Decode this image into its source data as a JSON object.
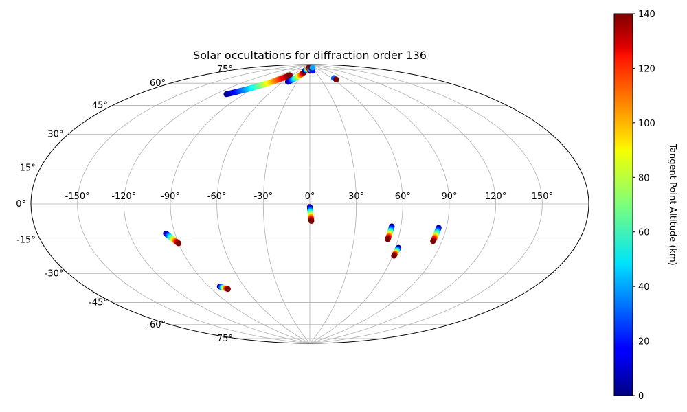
{
  "chart_data": {
    "type": "scatter",
    "projection": "aitoff",
    "title": "Solar occultations for diffraction order 136",
    "x_tick_labels": [
      "-150°",
      "-120°",
      "-90°",
      "-60°",
      "-30°",
      "0°",
      "30°",
      "60°",
      "90°",
      "120°",
      "150°"
    ],
    "x_tick_values": [
      -150,
      -120,
      -90,
      -60,
      -30,
      0,
      30,
      60,
      90,
      120,
      150
    ],
    "y_tick_labels": [
      "-75°",
      "-60°",
      "-45°",
      "-30°",
      "-15°",
      "0°",
      "15°",
      "30°",
      "45°",
      "60°",
      "75°"
    ],
    "y_tick_values": [
      -75,
      -60,
      -45,
      -30,
      -15,
      0,
      15,
      30,
      45,
      60,
      75
    ],
    "grid": true,
    "colorbar": {
      "label": "Tangent Point Altitude (km)",
      "colormap": "jet",
      "min": 0,
      "max": 140,
      "tick_labels": [
        "0",
        "20",
        "40",
        "60",
        "80",
        "100",
        "120",
        "140"
      ],
      "tick_values": [
        0,
        20,
        40,
        60,
        80,
        100,
        120,
        140
      ]
    },
    "occultations": [
      {
        "lon": [
          -109,
          -67
        ],
        "lat": [
          65,
          82
        ],
        "alt": [
          0,
          140
        ]
      },
      {
        "lon": [
          -50,
          -28
        ],
        "lat": [
          78,
          85
        ],
        "alt": [
          0,
          140
        ]
      },
      {
        "lon": [
          -30,
          -13
        ],
        "lat": [
          86,
          88
        ],
        "alt": [
          0,
          140
        ]
      },
      {
        "lon": [
          1,
          1
        ],
        "lat": [
          86,
          86
        ],
        "alt": [
          140,
          140
        ]
      },
      {
        "lon": [
          2,
          2
        ],
        "lat": [
          87,
          87
        ],
        "alt": [
          20,
          40
        ]
      },
      {
        "lon": [
          13,
          13
        ],
        "lat": [
          88,
          88
        ],
        "alt": [
          140,
          140
        ]
      },
      {
        "lon": [
          16,
          16
        ],
        "lat": [
          86,
          86
        ],
        "alt": [
          20,
          20
        ]
      },
      {
        "lon": [
          22,
          33
        ],
        "lat": [
          88,
          88
        ],
        "alt": [
          140,
          40
        ]
      },
      {
        "lon": [
          66,
          66
        ],
        "lat": [
          80,
          80
        ],
        "alt": [
          30,
          30
        ]
      },
      {
        "lon": [
          66,
          66
        ],
        "lat": [
          79,
          79
        ],
        "alt": [
          140,
          140
        ]
      },
      {
        "lon": [
          0,
          1
        ],
        "lat": [
          -2,
          -11
        ],
        "alt": [
          0,
          140
        ]
      },
      {
        "lon": [
          -96,
          -90
        ],
        "lat": [
          -17,
          -23
        ],
        "alt": [
          0,
          140
        ]
      },
      {
        "lon": [
          -81,
          -76
        ],
        "lat": [
          -50,
          -52
        ],
        "alt": [
          0,
          140
        ]
      },
      {
        "lon": [
          54,
          53
        ],
        "lat": [
          -14,
          -22
        ],
        "alt": [
          0,
          140
        ]
      },
      {
        "lon": [
          62,
          61
        ],
        "lat": [
          -27,
          -32
        ],
        "alt": [
          0,
          140
        ]
      },
      {
        "lon": [
          85,
          84
        ],
        "lat": [
          -14,
          -22
        ],
        "alt": [
          0,
          140
        ]
      }
    ]
  }
}
